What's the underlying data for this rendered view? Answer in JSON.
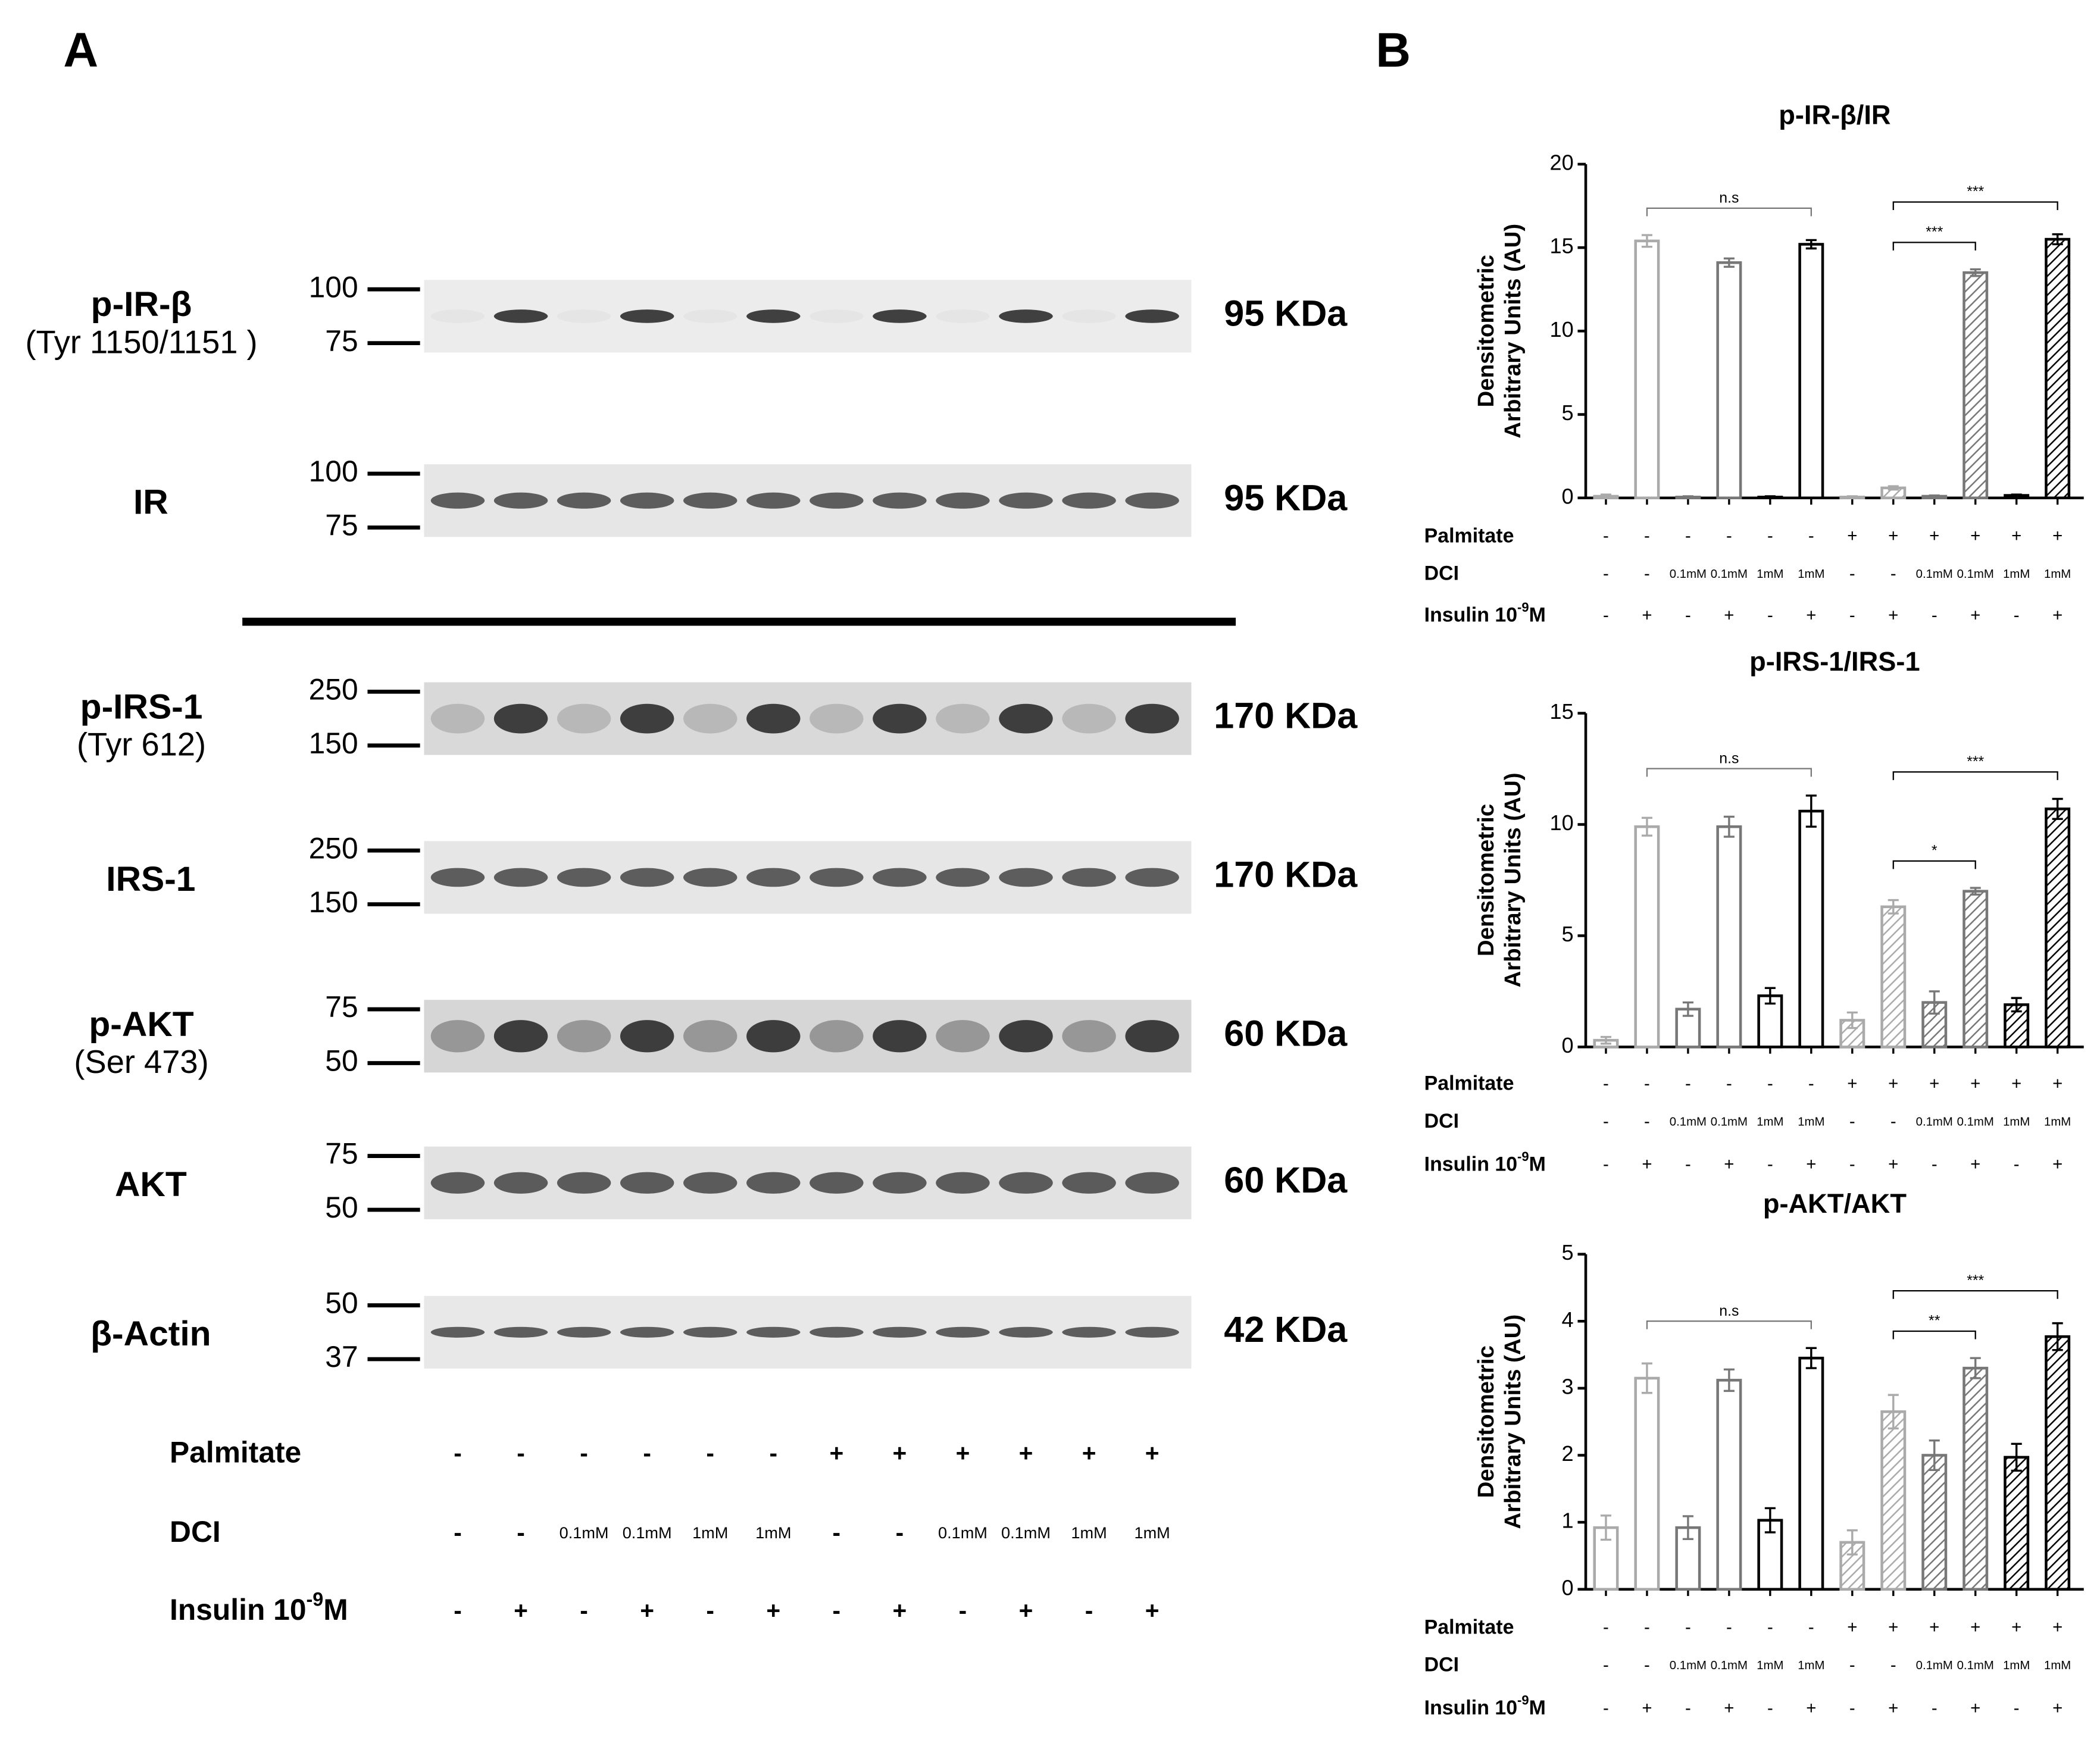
{
  "panels": {
    "a": "A",
    "b": "B"
  },
  "conditions": {
    "rows": [
      {
        "label": "Palmitate",
        "values": [
          "-",
          "-",
          "-",
          "-",
          "-",
          "-",
          "+",
          "+",
          "+",
          "+",
          "+",
          "+"
        ]
      },
      {
        "label": "DCI",
        "values": [
          "-",
          "-",
          "0.1mM",
          "0.1mM",
          "1mM",
          "1mM",
          "-",
          "-",
          "0.1mM",
          "0.1mM",
          "1mM",
          "1mM"
        ]
      },
      {
        "label": {
          "text": "Insulin 10",
          "sup": "-9",
          "unit": "M"
        },
        "values": [
          "-",
          "+",
          "-",
          "+",
          "-",
          "+",
          "-",
          "+",
          "-",
          "+",
          "-",
          "+"
        ]
      }
    ]
  },
  "blots": [
    {
      "label": "p-IR-β",
      "sublabel": "(Tyr 1150/1151 )",
      "markers": [
        100,
        75
      ],
      "size": "95 KDa"
    },
    {
      "label": "IR",
      "markers": [
        100,
        75
      ],
      "size": "95 KDa"
    },
    {
      "label": "p-IRS-1",
      "sublabel": "(Tyr 612)",
      "markers": [
        250,
        150
      ],
      "size": "170 KDa"
    },
    {
      "label": "IRS-1",
      "markers": [
        250,
        150
      ],
      "size": "170 KDa"
    },
    {
      "label": "p-AKT",
      "sublabel": "(Ser 473)",
      "markers": [
        75,
        50
      ],
      "size": "60 KDa"
    },
    {
      "label": "AKT",
      "markers": [
        75,
        50
      ],
      "size": "60 KDa"
    },
    {
      "label": "β-Actin",
      "markers": [
        50,
        37
      ],
      "size": "42 KDa"
    }
  ],
  "chart_data": [
    {
      "type": "bar",
      "title": "p-IR-β/IR",
      "y_label": [
        "Densitometric",
        "Arbitrary Units (AU)"
      ],
      "values": [
        0.1,
        15.4,
        0.05,
        14.1,
        0.05,
        15.2,
        0.05,
        0.6,
        0.1,
        13.5,
        0.15,
        15.5
      ],
      "errors": [
        0.1,
        0.35,
        0.05,
        0.25,
        0.05,
        0.25,
        0.05,
        0.1,
        0.05,
        0.2,
        0.05,
        0.3
      ],
      "colors": [
        "#aaaaaa",
        "#aaaaaa",
        "#777777",
        "#777777",
        "#000000",
        "#000000",
        "#aaaaaa",
        "#aaaaaa",
        "#777777",
        "#777777",
        "#000000",
        "#000000"
      ],
      "hatch": [
        false,
        false,
        false,
        false,
        false,
        false,
        true,
        true,
        true,
        true,
        true,
        true
      ],
      "ylim": [
        0,
        20
      ],
      "yticks": [
        0,
        5,
        10,
        15,
        20
      ],
      "annotations": [
        "n.s",
        "***",
        "***"
      ]
    },
    {
      "type": "bar",
      "title": "p-IRS-1/IRS-1",
      "y_label": [
        "Densitometric",
        "Arbitrary Units (AU)"
      ],
      "values": [
        0.3,
        9.9,
        1.7,
        9.9,
        2.3,
        10.6,
        1.2,
        6.3,
        2.0,
        7.0,
        1.9,
        10.7
      ],
      "errors": [
        0.15,
        0.4,
        0.3,
        0.45,
        0.35,
        0.7,
        0.35,
        0.3,
        0.5,
        0.15,
        0.3,
        0.45
      ],
      "colors": [
        "#aaaaaa",
        "#aaaaaa",
        "#777777",
        "#777777",
        "#000000",
        "#000000",
        "#aaaaaa",
        "#aaaaaa",
        "#777777",
        "#777777",
        "#000000",
        "#000000"
      ],
      "hatch": [
        false,
        false,
        false,
        false,
        false,
        false,
        true,
        true,
        true,
        true,
        true,
        true
      ],
      "ylim": [
        0,
        15
      ],
      "yticks": [
        0,
        5,
        10,
        15
      ],
      "annotations": [
        "n.s",
        "*",
        "***"
      ]
    },
    {
      "type": "bar",
      "title": "p-AKT/AKT",
      "y_label": [
        "Densitometric",
        "Arbitrary Units (AU)"
      ],
      "values": [
        0.92,
        3.15,
        0.92,
        3.12,
        1.03,
        3.45,
        0.7,
        2.65,
        2.0,
        3.3,
        1.97,
        3.77
      ],
      "errors": [
        0.18,
        0.22,
        0.17,
        0.16,
        0.18,
        0.15,
        0.18,
        0.25,
        0.22,
        0.15,
        0.2,
        0.2
      ],
      "colors": [
        "#aaaaaa",
        "#aaaaaa",
        "#777777",
        "#777777",
        "#000000",
        "#000000",
        "#aaaaaa",
        "#aaaaaa",
        "#777777",
        "#777777",
        "#000000",
        "#000000"
      ],
      "hatch": [
        false,
        false,
        false,
        false,
        false,
        false,
        true,
        true,
        true,
        true,
        true,
        true
      ],
      "ylim": [
        0,
        5
      ],
      "yticks": [
        0,
        1,
        2,
        3,
        4,
        5
      ],
      "annotations": [
        "n.s",
        "**",
        "***"
      ]
    }
  ]
}
